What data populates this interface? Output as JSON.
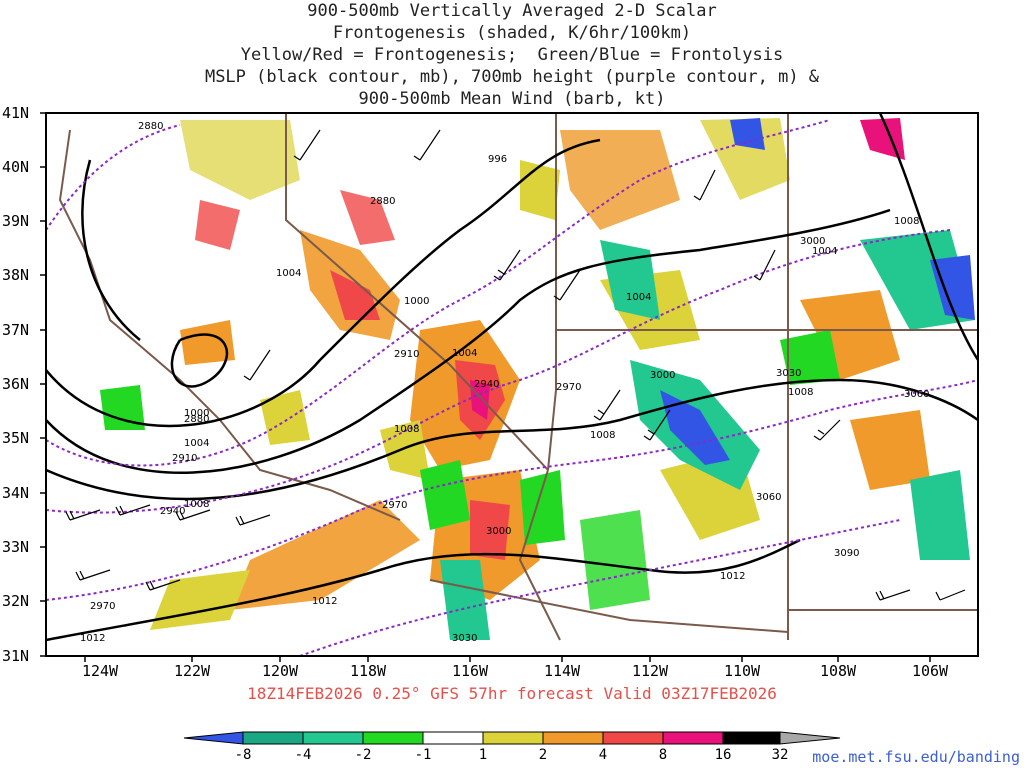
{
  "title_lines": [
    "900-500mb Vertically Averaged 2-D Scalar",
    "Frontogenesis (shaded, K/6hr/100km)",
    "Yellow/Red = Frontogenesis;  Green/Blue = Frontolysis",
    "MSLP (black contour, mb), 700mb height (purple contour, m) &",
    "900-500mb Mean Wind (barb, kt)"
  ],
  "subtitle": "18Z14FEB2026 0.25° GFS 57hr forecast Valid 03Z17FEB2026",
  "lat_labels": [
    "41N",
    "40N",
    "39N",
    "38N",
    "37N",
    "36N",
    "35N",
    "34N",
    "33N",
    "32N",
    "31N"
  ],
  "lon_labels": [
    "124W",
    "122W",
    "120W",
    "118W",
    "116W",
    "114W",
    "112W",
    "110W",
    "108W",
    "106W"
  ],
  "colorbar": {
    "labels": [
      "-8",
      "-4",
      "-2",
      "-1",
      "1",
      "2",
      "4",
      "8",
      "16",
      "32"
    ],
    "colors": [
      "#3355e6",
      "#1aa884",
      "#22c890",
      "#22d822",
      "#ffffff",
      "#dcd23a",
      "#ef9a2a",
      "#f04848",
      "#e8127a",
      "#000000",
      "#a8a8a8"
    ]
  },
  "mslp_labels": [
    "996",
    "1000",
    "1000",
    "1004",
    "1004",
    "1004",
    "1004",
    "1004",
    "1008",
    "1008",
    "1008",
    "1008",
    "1008",
    "1012",
    "1012",
    "1012"
  ],
  "height_labels": [
    "2880",
    "2880",
    "2880",
    "2910",
    "2910",
    "2940",
    "2940",
    "2970",
    "2970",
    "2970",
    "3000",
    "3000",
    "3000",
    "3030",
    "3030",
    "3060",
    "3060",
    "3090"
  ],
  "url": "moe.met.fsu.edu/banding"
}
